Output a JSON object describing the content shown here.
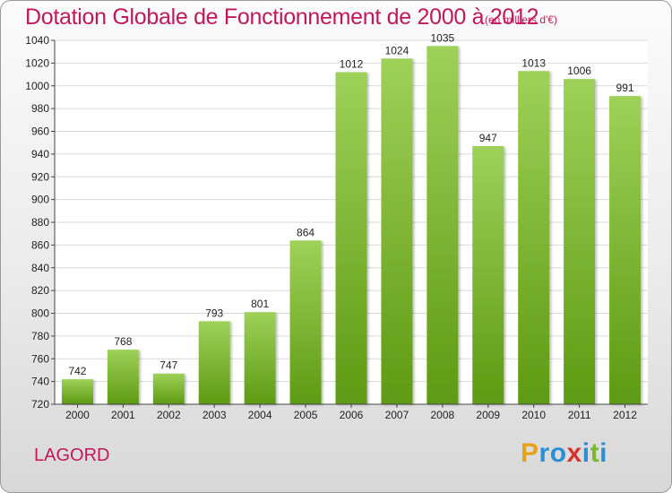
{
  "header": {
    "title": "Dotation Globale de Fonctionnement de 2000 à 2012",
    "unit": "(en milliers d'€)"
  },
  "footer": {
    "commune": "LAGORD",
    "logo": "Proxiti"
  },
  "colors": {
    "title": "#c2185b",
    "bar_light": "#9ed158",
    "bar_dark": "#5e9a12",
    "plot_background": "#ffffff",
    "grid": "#d9d9d9"
  },
  "chart_data": {
    "type": "bar",
    "categories": [
      "2000",
      "2001",
      "2002",
      "2003",
      "2004",
      "2005",
      "2006",
      "2007",
      "2008",
      "2009",
      "2010",
      "2011",
      "2012"
    ],
    "values": [
      742,
      768,
      747,
      793,
      801,
      864,
      1012,
      1024,
      1035,
      947,
      1013,
      1006,
      991
    ],
    "title": "Dotation Globale de Fonctionnement de 2000 à 2012",
    "xlabel": "",
    "ylabel": "",
    "ylim": [
      720,
      1040
    ],
    "yticks": [
      720,
      740,
      760,
      780,
      800,
      820,
      840,
      860,
      880,
      900,
      920,
      940,
      960,
      980,
      1000,
      1020,
      1040
    ],
    "grid": true,
    "data_labels": true
  }
}
